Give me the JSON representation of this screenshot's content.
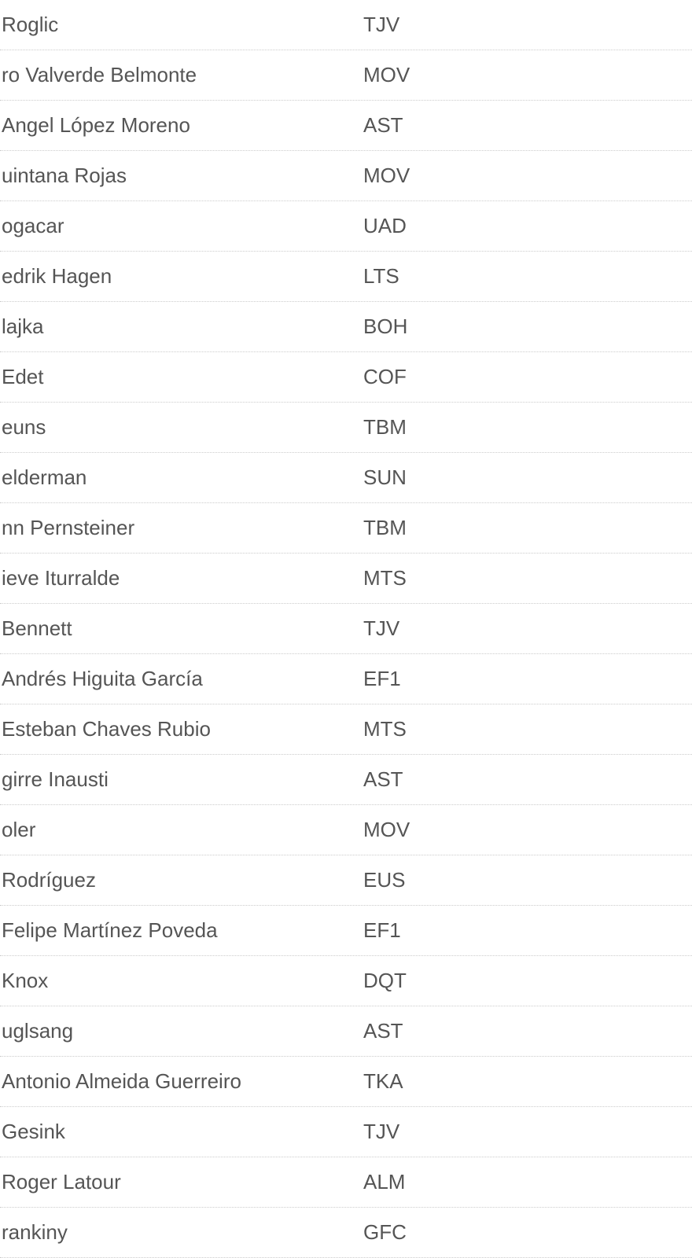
{
  "table": {
    "text_color": "#555555",
    "border_color": "#cccccc",
    "background_color": "#ffffff",
    "font_size": 26,
    "rows": [
      {
        "name": " Roglic",
        "team": "TJV"
      },
      {
        "name": "ro Valverde Belmonte",
        "team": "MOV"
      },
      {
        "name": "Angel López Moreno",
        "team": "AST"
      },
      {
        "name": "uintana Rojas",
        "team": "MOV"
      },
      {
        "name": "ogacar",
        "team": "UAD"
      },
      {
        "name": "edrik Hagen",
        "team": "LTS"
      },
      {
        "name": "lajka",
        "team": "BOH"
      },
      {
        "name": " Edet",
        "team": "COF"
      },
      {
        "name": "euns",
        "team": "TBM"
      },
      {
        "name": "elderman",
        "team": "SUN"
      },
      {
        "name": "nn Pernsteiner",
        "team": "TBM"
      },
      {
        "name": "ieve Iturralde",
        "team": "MTS"
      },
      {
        "name": " Bennett",
        "team": "TJV"
      },
      {
        "name": "Andrés Higuita García",
        "team": "EF1"
      },
      {
        "name": "Esteban Chaves Rubio",
        "team": "MTS"
      },
      {
        "name": "girre Inausti",
        "team": "AST"
      },
      {
        "name": "oler",
        "team": "MOV"
      },
      {
        "name": "Rodríguez",
        "team": "EUS"
      },
      {
        "name": "Felipe Martínez Poveda",
        "team": "EF1"
      },
      {
        "name": "Knox",
        "team": "DQT"
      },
      {
        "name": "uglsang",
        "team": "AST"
      },
      {
        "name": "Antonio Almeida Guerreiro",
        "team": "TKA"
      },
      {
        "name": "Gesink",
        "team": "TJV"
      },
      {
        "name": "Roger Latour",
        "team": "ALM"
      },
      {
        "name": "rankiny",
        "team": "GFC"
      }
    ]
  }
}
